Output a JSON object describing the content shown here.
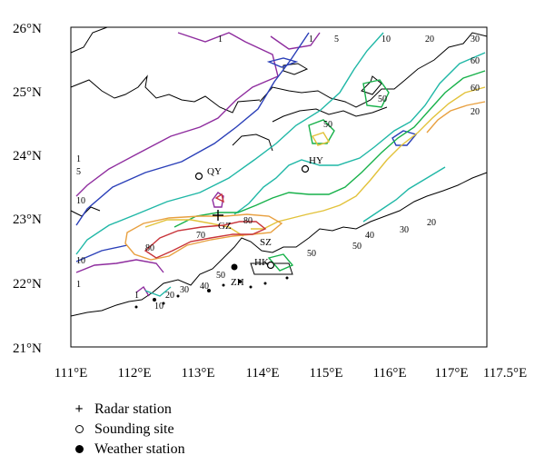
{
  "map": {
    "lat_labels": [
      "26°N",
      "25°N",
      "24°N",
      "23°N",
      "22°N",
      "21°N"
    ],
    "lon_labels": [
      "111°E",
      "112°E",
      "113°E",
      "114°E",
      "115°E",
      "116°E",
      "117°E",
      "117.5°E"
    ],
    "extent": {
      "lon": [
        111,
        117.5
      ],
      "lat": [
        21,
        26
      ]
    },
    "sites": [
      {
        "label": "QY",
        "type": "sounding",
        "lon": 113.0,
        "lat": 23.7
      },
      {
        "label": "HY",
        "type": "sounding",
        "lon": 114.7,
        "lat": 23.75
      },
      {
        "label": "GZ",
        "type": "radar",
        "lon": 113.3,
        "lat": 23.05
      },
      {
        "label": "SZ",
        "type": "label",
        "lon": 114.05,
        "lat": 22.6
      },
      {
        "label": "HK",
        "type": "sounding",
        "lon": 114.15,
        "lat": 22.3
      },
      {
        "label": "ZH",
        "type": "weather",
        "lon": 113.55,
        "lat": 22.25
      }
    ],
    "contour_labels": [
      "1",
      "1",
      "5",
      "10",
      "20",
      "30",
      "60",
      "60",
      "20",
      "50",
      "50",
      "1",
      "5",
      "10",
      "10",
      "1",
      "80",
      "70",
      "80",
      "50",
      "50",
      "40",
      "30",
      "20",
      "10",
      "20",
      "30",
      "40",
      "50",
      "1"
    ],
    "colors": {
      "purple": "#8e2c9e",
      "blue": "#2a3fb8",
      "teal": "#1fb7a6",
      "green": "#17b14a",
      "yellow": "#e2c23a",
      "orange": "#e8a040",
      "red": "#c8343a"
    }
  },
  "legend": [
    {
      "symbol": "plus",
      "label": "Radar station"
    },
    {
      "symbol": "open-circle",
      "label": "Sounding site"
    },
    {
      "symbol": "filled-circle",
      "label": "Weather station"
    }
  ]
}
